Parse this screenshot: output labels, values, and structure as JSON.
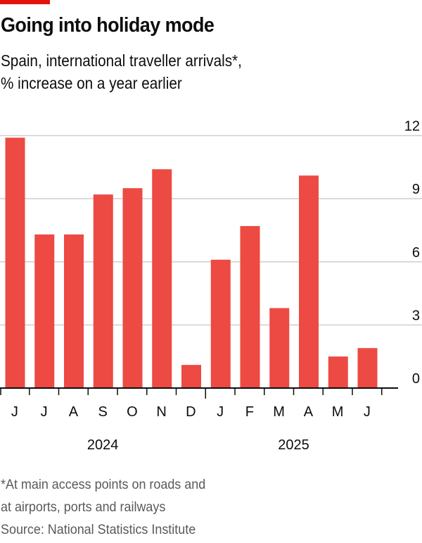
{
  "header": {
    "title": "Going into holiday mode",
    "subtitle_line1": "Spain, international traveller arrivals*,",
    "subtitle_line2": "% increase on a year earlier"
  },
  "colors": {
    "accent": "#e3120b",
    "bar": "#ec4a43",
    "grid": "#cfcfcf",
    "axis": "#0d0d0d",
    "footnote": "#595959"
  },
  "chart_data": {
    "type": "bar",
    "title": "Going into holiday mode",
    "subtitle": "Spain, international traveller arrivals*, % increase on a year earlier",
    "xlabel": "",
    "ylabel": "% increase on a year earlier",
    "categories": [
      "J",
      "J",
      "A",
      "S",
      "O",
      "N",
      "D",
      "J",
      "F",
      "M",
      "A",
      "M",
      "J"
    ],
    "periods": [
      "Jun 2024",
      "Jul 2024",
      "Aug 2024",
      "Sep 2024",
      "Oct 2024",
      "Nov 2024",
      "Dec 2024",
      "Jan 2025",
      "Feb 2025",
      "Mar 2025",
      "Apr 2025",
      "May 2025",
      "Jun 2025"
    ],
    "values": [
      11.9,
      7.3,
      7.3,
      9.2,
      9.5,
      10.4,
      1.1,
      6.1,
      7.7,
      3.8,
      10.1,
      1.5,
      1.9
    ],
    "year_labels": [
      {
        "label": "2024",
        "first_index": 0,
        "last_index": 6
      },
      {
        "label": "2025",
        "first_index": 7,
        "last_index": 12
      }
    ],
    "ylim": [
      0,
      12
    ],
    "yticks": [
      0,
      3,
      6,
      9,
      12
    ],
    "ytick_side": "right",
    "grid": true
  },
  "footnote": {
    "line1": "*At main access points on roads and",
    "line2": "at airports, ports and railways",
    "source": "Source: National Statistics Institute"
  }
}
